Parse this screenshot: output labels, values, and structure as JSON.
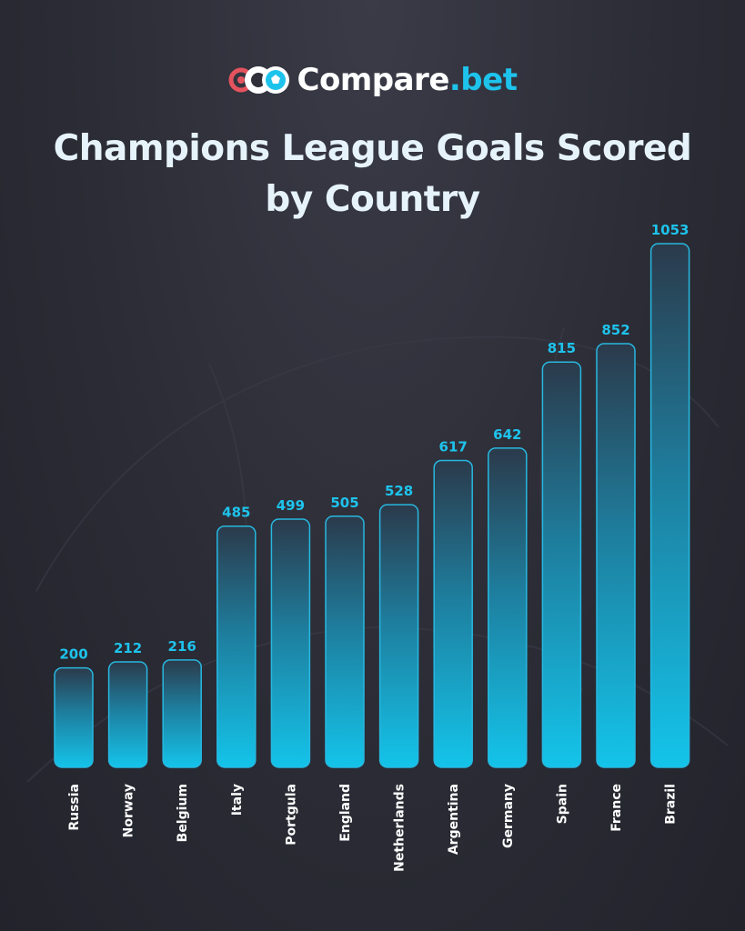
{
  "brand": {
    "name": "Compare",
    "tld": ".bet"
  },
  "colors": {
    "accent": "#1ec3ec",
    "logo_red": "#e5535e",
    "title_text": "#e6f3fa"
  },
  "chart_data": {
    "type": "bar",
    "title": "Champions League Goals Scored by Country",
    "title_lines": [
      "Champions League Goals Scored",
      "by Country"
    ],
    "xlabel": "",
    "ylabel": "",
    "categories": [
      "Russia",
      "Norway",
      "Belgium",
      "Italy",
      "Portgula",
      "England",
      "Netherlands",
      "Argentina",
      "Germany",
      "Spain",
      "France",
      "Brazil"
    ],
    "values": [
      200,
      212,
      216,
      485,
      499,
      505,
      528,
      617,
      642,
      815,
      852,
      1053
    ],
    "ylim": [
      0,
      1053
    ],
    "grid": false,
    "data_labels": true,
    "legend": "none"
  }
}
